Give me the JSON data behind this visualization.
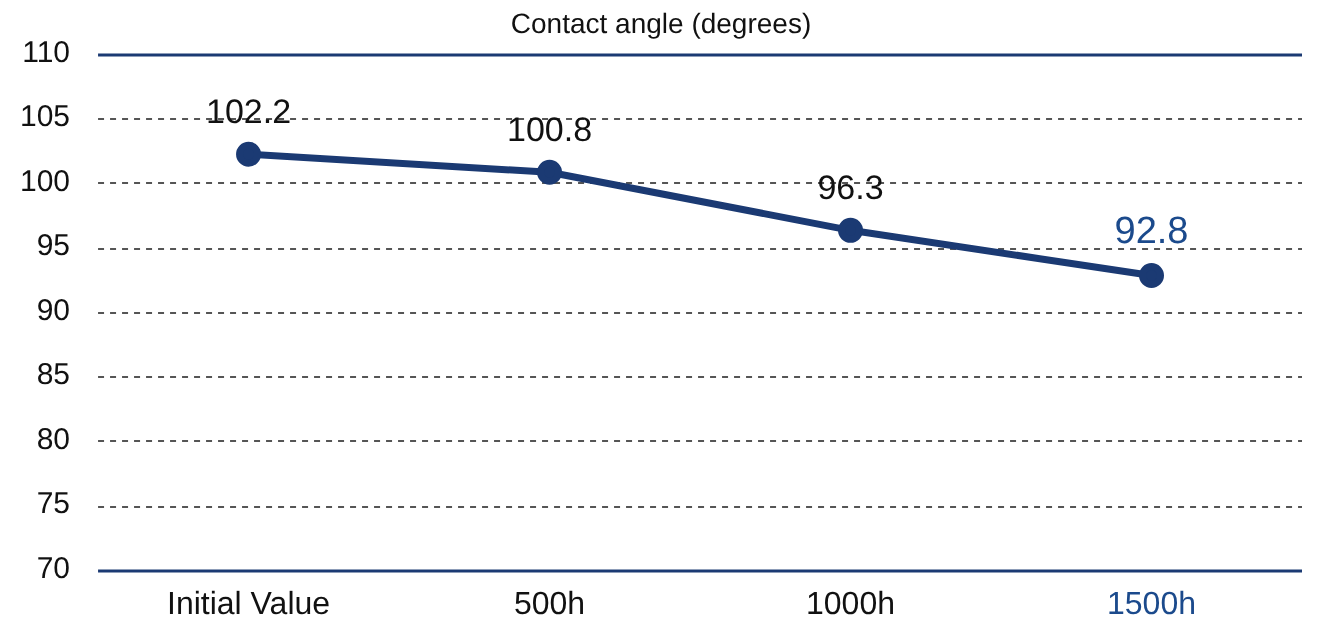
{
  "chart_data": {
    "type": "line",
    "title": "Contact angle (degrees)",
    "categories": [
      "Initial Value",
      "500h",
      "1000h",
      "1500h"
    ],
    "series": [
      {
        "color": "#1b3a73",
        "values": [
          102.2,
          100.8,
          96.3,
          92.8
        ]
      }
    ],
    "ylim": [
      70,
      110
    ],
    "yticks": [
      70,
      75,
      80,
      85,
      90,
      95,
      100,
      105,
      110
    ],
    "grid": "y",
    "legend": false,
    "marker": "circle",
    "line_style": "solid",
    "data_labels": true
  }
}
